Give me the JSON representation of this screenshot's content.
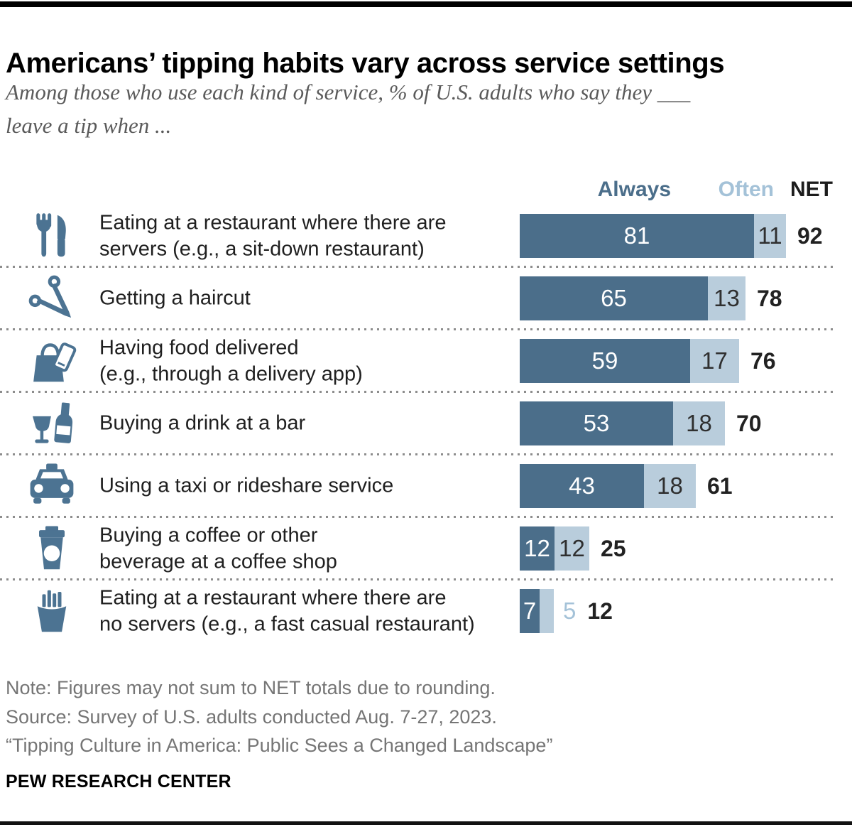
{
  "header": {
    "title": "Americans’ tipping habits vary across service settings",
    "subtitle": "Among those who use each kind of service, % of U.S. adults who say they ___\nleave a tip when ..."
  },
  "columns": {
    "always": "Always",
    "often": "Often",
    "net": "NET"
  },
  "rows": [
    {
      "icon": "fork-knife",
      "label": "Eating at a restaurant where there are\nservers (e.g., a sit-down restaurant)",
      "always": 81,
      "often": 11,
      "net": 92
    },
    {
      "icon": "scissors",
      "label": "Getting a haircut",
      "always": 65,
      "often": 13,
      "net": 78
    },
    {
      "icon": "bag-phone",
      "label": "Having food delivered\n(e.g., through a delivery app)",
      "always": 59,
      "often": 17,
      "net": 76
    },
    {
      "icon": "wine-bottle",
      "label": "Buying a drink at a bar",
      "always": 53,
      "often": 18,
      "net": 70
    },
    {
      "icon": "taxi",
      "label": "Using a taxi or rideshare service",
      "always": 43,
      "often": 18,
      "net": 61
    },
    {
      "icon": "coffee-cup",
      "label": "Buying a coffee or other\nbeverage at a coffee shop",
      "always": 12,
      "often": 12,
      "net": 25
    },
    {
      "icon": "fries",
      "label": "Eating at a restaurant where there are\nno servers (e.g., a fast casual restaurant)",
      "always": 7,
      "often": 5,
      "net": 12
    }
  ],
  "footer": {
    "note": "Note: Figures may not sum to NET totals due to rounding.",
    "source": "Source: Survey of U.S. adults conducted Aug. 7-27, 2023.",
    "quote": "“Tipping Culture in America: Public Sees a Changed Landscape”",
    "brand": "PEW RESEARCH CENTER"
  },
  "colors": {
    "always_bar": "#4B6E8A",
    "often_bar": "#B9CDDC",
    "often_label": "#A4C2D8",
    "net_text": "#222222",
    "icon_blue": "#4C7392"
  },
  "chart_data": {
    "type": "bar",
    "orientation": "horizontal",
    "stacked": true,
    "title": "Americans’ tipping habits vary across service settings",
    "subtitle": "Among those who use each kind of service, % of U.S. adults who say they ___ leave a tip when ...",
    "categories": [
      "Eating at a restaurant where there are servers (e.g., a sit-down restaurant)",
      "Getting a haircut",
      "Having food delivered (e.g., through a delivery app)",
      "Buying a drink at a bar",
      "Using a taxi or rideshare service",
      "Buying a coffee or other beverage at a coffee shop",
      "Eating at a restaurant where there are no servers (e.g., a fast casual restaurant)"
    ],
    "series": [
      {
        "name": "Always",
        "values": [
          81,
          65,
          59,
          53,
          43,
          12,
          7
        ],
        "color": "#4B6E8A"
      },
      {
        "name": "Often",
        "values": [
          11,
          13,
          17,
          18,
          18,
          12,
          5
        ],
        "color": "#B9CDDC"
      }
    ],
    "net": {
      "label": "NET",
      "values": [
        92,
        78,
        76,
        70,
        61,
        25,
        12
      ]
    },
    "xlim": [
      0,
      100
    ],
    "value_labels": true,
    "legend_position": "top-right",
    "grid": false
  }
}
